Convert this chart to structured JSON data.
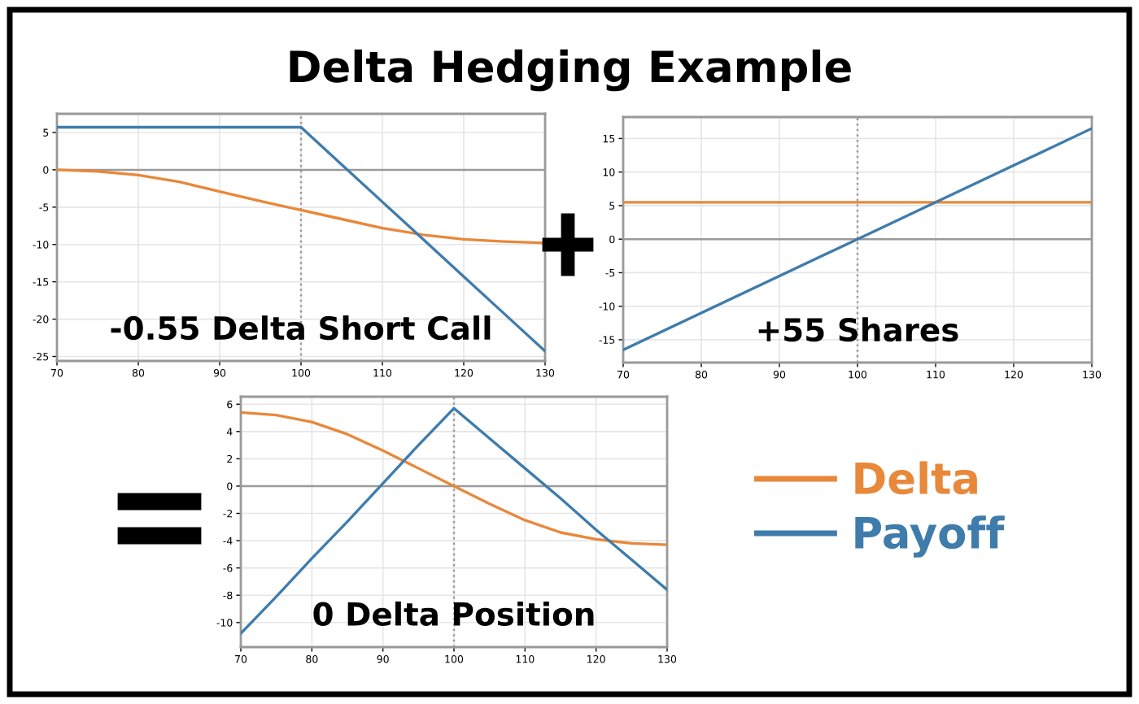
{
  "chart_data": [
    {
      "type": "line",
      "title": "Delta Hedging Example",
      "annotations": [
        "-0.55 Delta Short Call"
      ],
      "x": [
        70,
        75,
        80,
        85,
        90,
        95,
        100,
        105,
        110,
        115,
        120,
        125,
        130
      ],
      "series": [
        {
          "color": "#e8883a",
          "values": [
            0,
            -0.2,
            -0.7,
            -1.6,
            -2.9,
            -4.2,
            -5.4,
            -6.6,
            -7.8,
            -8.7,
            -9.3,
            -9.6,
            -9.8
          ]
        },
        {
          "color": "#3f7cac",
          "values": [
            5.7,
            5.7,
            5.7,
            5.7,
            5.7,
            5.7,
            5.7,
            0.7,
            -4.3,
            -9.3,
            -14.3,
            -19.3,
            -24.3
          ]
        }
      ],
      "xlim": [
        70,
        130
      ],
      "ylim": [
        -25.6,
        7.5
      ],
      "xticks": [
        70,
        80,
        90,
        100,
        110,
        120,
        130
      ],
      "yticks": [
        -25,
        -20,
        -15,
        -10,
        -5,
        0,
        5
      ],
      "grid": true,
      "ref_lines": [
        {
          "axis": "y",
          "value": 0,
          "color": "#9a9a9a",
          "line_style": "solid"
        },
        {
          "axis": "x",
          "value": 100,
          "color": "#9a9a9a",
          "line_style": "dotted"
        }
      ]
    },
    {
      "type": "line",
      "annotations": [
        "+55 Shares"
      ],
      "x": [
        70,
        100,
        130
      ],
      "series": [
        {
          "color": "#e8883a",
          "values": [
            5.5,
            5.5,
            5.5
          ]
        },
        {
          "color": "#3f7cac",
          "values": [
            -16.5,
            0,
            16.5
          ]
        }
      ],
      "xlim": [
        70,
        130
      ],
      "ylim": [
        -18.4,
        18.2
      ],
      "xticks": [
        70,
        80,
        90,
        100,
        110,
        120,
        130
      ],
      "yticks": [
        -15,
        -10,
        -5,
        0,
        5,
        10,
        15
      ],
      "grid": true,
      "ref_lines": [
        {
          "axis": "y",
          "value": 0,
          "color": "#9a9a9a",
          "line_style": "solid"
        },
        {
          "axis": "x",
          "value": 100,
          "color": "#9a9a9a",
          "line_style": "dotted"
        }
      ]
    },
    {
      "type": "line",
      "annotations": [
        "0 Delta Position"
      ],
      "x": [
        70,
        75,
        80,
        85,
        90,
        95,
        100,
        105,
        110,
        115,
        120,
        125,
        130
      ],
      "series": [
        {
          "name": "Delta",
          "color": "#e8883a",
          "values": [
            5.4,
            5.2,
            4.7,
            3.8,
            2.6,
            1.3,
            0,
            -1.3,
            -2.5,
            -3.4,
            -3.9,
            -4.2,
            -4.3
          ]
        },
        {
          "name": "Payoff",
          "color": "#3f7cac",
          "values": [
            -10.8,
            -8.1,
            -5.3,
            -2.6,
            0.2,
            3.0,
            5.7,
            3.5,
            1.3,
            -0.9,
            -3.2,
            -5.4,
            -7.6
          ]
        }
      ],
      "xlim": [
        70,
        130
      ],
      "ylim": [
        -11.8,
        6.55
      ],
      "xticks": [
        70,
        80,
        90,
        100,
        110,
        120,
        130
      ],
      "yticks": [
        -10,
        -8,
        -6,
        -4,
        -2,
        0,
        2,
        4,
        6
      ],
      "grid": true,
      "legend": "right",
      "ref_lines": [
        {
          "axis": "y",
          "value": 0,
          "color": "#9a9a9a",
          "line_style": "solid"
        },
        {
          "axis": "x",
          "value": 100,
          "color": "#9a9a9a",
          "line_style": "dotted"
        }
      ]
    }
  ]
}
